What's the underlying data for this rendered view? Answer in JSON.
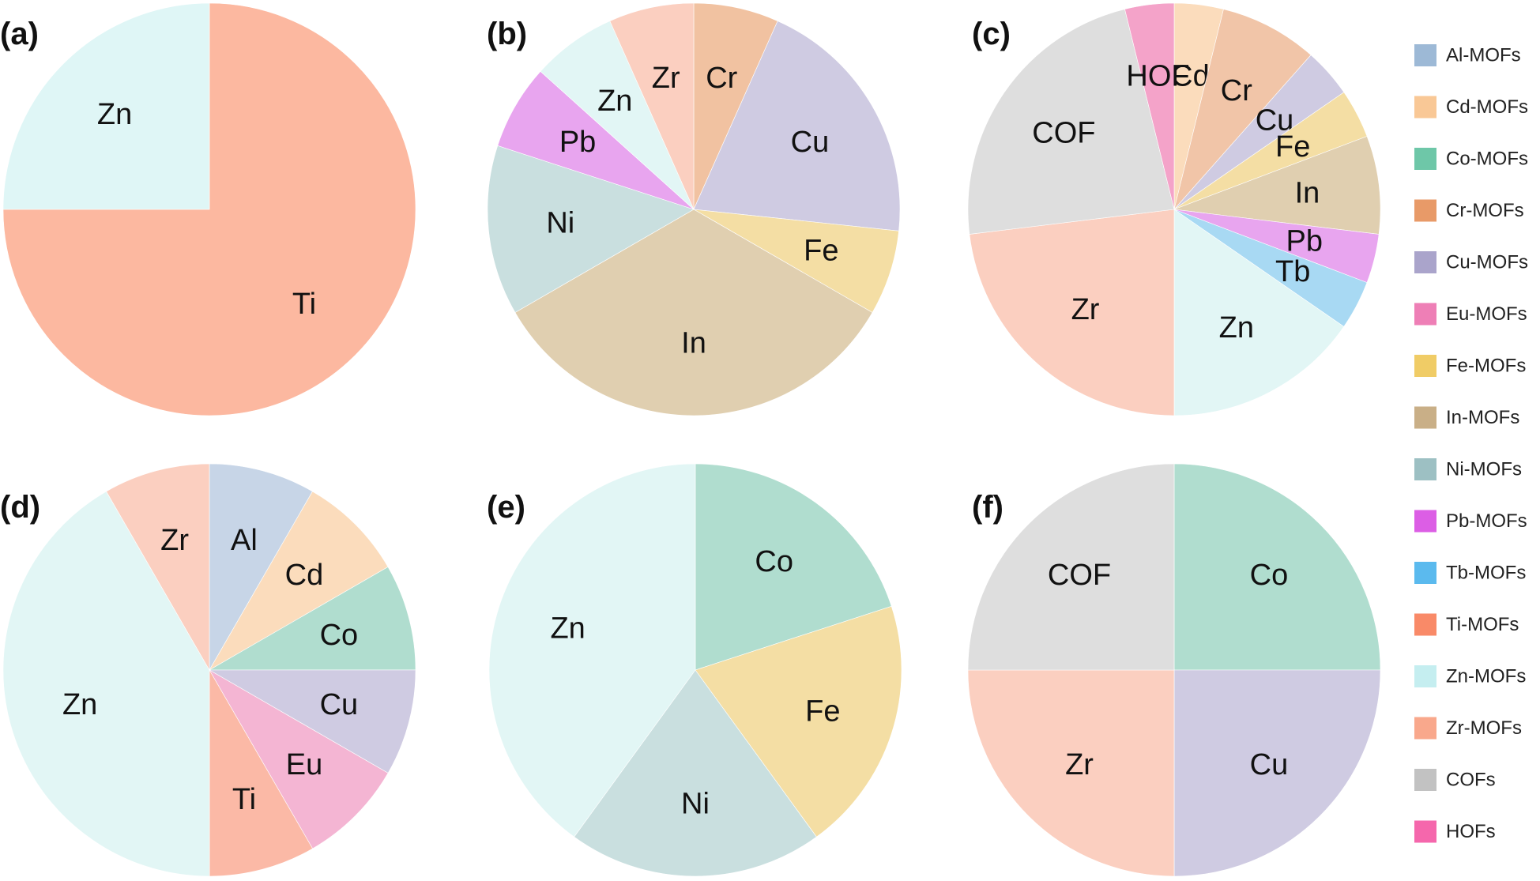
{
  "legend": [
    {
      "label": "Al-MOFs",
      "color": "#9db9d6"
    },
    {
      "label": "Cd-MOFs",
      "color": "#f9c896"
    },
    {
      "label": "Co-MOFs",
      "color": "#6ec7a8"
    },
    {
      "label": "Cr-MOFs",
      "color": "#e89a68"
    },
    {
      "label": "Cu-MOFs",
      "color": "#aaa4cb"
    },
    {
      "label": "Eu-MOFs",
      "color": "#ee7fb6"
    },
    {
      "label": "Fe-MOFs",
      "color": "#f0cc66"
    },
    {
      "label": "In-MOFs",
      "color": "#c9af87"
    },
    {
      "label": "Ni-MOFs",
      "color": "#9dc0c3"
    },
    {
      "label": "Pb-MOFs",
      "color": "#dc5ee5"
    },
    {
      "label": "Tb-MOFs",
      "color": "#5bbaee"
    },
    {
      "label": "Ti-MOFs",
      "color": "#f98a68"
    },
    {
      "label": "Zn-MOFs",
      "color": "#c5eef0"
    },
    {
      "label": "Zr-MOFs",
      "color": "#f9a88c"
    },
    {
      "label": "COFs",
      "color": "#c2c2c2"
    },
    {
      "label": "HOFs",
      "color": "#f567ac"
    }
  ],
  "chart_data": [
    {
      "type": "pie",
      "panel": "(a)",
      "slices": [
        {
          "label": "Ti",
          "value": 75,
          "color": "#fcb8a0"
        },
        {
          "label": "Zn",
          "value": 25,
          "color": "#dff6f6"
        }
      ]
    },
    {
      "type": "pie",
      "panel": "(b)",
      "slices": [
        {
          "label": "Cr",
          "value": 6.25,
          "color": "#f1c2a1"
        },
        {
          "label": "Cu",
          "value": 18.75,
          "color": "#cfcbe2"
        },
        {
          "label": "Fe",
          "value": 6.25,
          "color": "#f4dea4"
        },
        {
          "label": "In",
          "value": 31.25,
          "color": "#e0cfb0"
        },
        {
          "label": "Ni",
          "value": 12.5,
          "color": "#c9dfdf"
        },
        {
          "label": "Pb",
          "value": 6.25,
          "color": "#e8a5ef"
        },
        {
          "label": "Zn",
          "value": 6.25,
          "color": "#e2f6f5"
        },
        {
          "label": "Zr",
          "value": 6.25,
          "color": "#fbcfc0"
        }
      ]
    },
    {
      "type": "pie",
      "panel": "(c)",
      "slices": [
        {
          "label": "Cd",
          "value": 3.85,
          "color": "#fbdcbc"
        },
        {
          "label": "Cr",
          "value": 7.69,
          "color": "#f1c5a8"
        },
        {
          "label": "Cu",
          "value": 3.85,
          "color": "#cfcbe2"
        },
        {
          "label": "Fe",
          "value": 3.85,
          "color": "#f4dea4"
        },
        {
          "label": "In",
          "value": 7.69,
          "color": "#e0cfb0"
        },
        {
          "label": "Pb",
          "value": 3.85,
          "color": "#e8a5ef"
        },
        {
          "label": "Tb",
          "value": 3.85,
          "color": "#a8d9f3"
        },
        {
          "label": "Zn",
          "value": 15.38,
          "color": "#e2f6f5"
        },
        {
          "label": "Zr",
          "value": 23.08,
          "color": "#fbcfc0"
        },
        {
          "label": "COF",
          "value": 23.08,
          "color": "#dedede"
        },
        {
          "label": "HOF",
          "value": 3.85,
          "color": "#f4a3c9"
        }
      ]
    },
    {
      "type": "pie",
      "panel": "(d)",
      "slices": [
        {
          "label": "Al",
          "value": 8.33,
          "color": "#c7d5e7"
        },
        {
          "label": "Cd",
          "value": 8.33,
          "color": "#fbdcbc"
        },
        {
          "label": "Co",
          "value": 8.33,
          "color": "#b0ddcf"
        },
        {
          "label": "Cu",
          "value": 8.33,
          "color": "#cfcbe2"
        },
        {
          "label": "Eu",
          "value": 8.33,
          "color": "#f4b5d3"
        },
        {
          "label": "Ti",
          "value": 8.33,
          "color": "#fbb9a6"
        },
        {
          "label": "Zn",
          "value": 41.67,
          "color": "#e2f6f5"
        },
        {
          "label": "Zr",
          "value": 8.33,
          "color": "#fbcfc0"
        }
      ]
    },
    {
      "type": "pie",
      "panel": "(e)",
      "slices": [
        {
          "label": "Co",
          "value": 20,
          "color": "#b0ddcf"
        },
        {
          "label": "Fe",
          "value": 20,
          "color": "#f4dea4"
        },
        {
          "label": "Ni",
          "value": 20,
          "color": "#c9dfdf"
        },
        {
          "label": "Zn",
          "value": 40,
          "color": "#e2f6f5"
        }
      ]
    },
    {
      "type": "pie",
      "panel": "(f)",
      "slices": [
        {
          "label": "Co",
          "value": 25,
          "color": "#b0ddcf"
        },
        {
          "label": "Cu",
          "value": 25,
          "color": "#cfcbe2"
        },
        {
          "label": "Zr",
          "value": 25,
          "color": "#fbcfc0"
        },
        {
          "label": "COF",
          "value": 25,
          "color": "#dedede"
        }
      ]
    }
  ]
}
